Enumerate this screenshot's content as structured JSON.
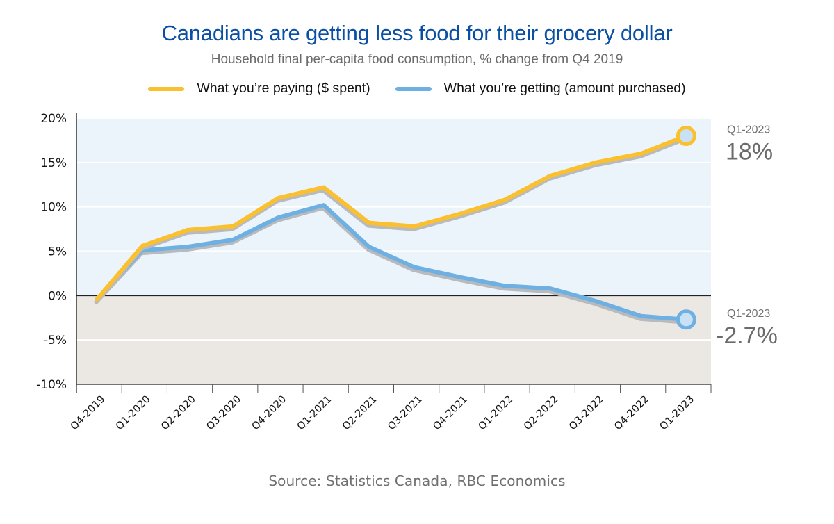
{
  "title": "Canadians are getting less food for their grocery dollar",
  "subtitle": "Household final per-capita food consumption, % change from Q4 2019",
  "source": "Source: Statistics Canada, RBC Economics",
  "colors": {
    "title": "#0a4fa3",
    "paying": "#fbc02d",
    "getting": "#6fb0e3",
    "shadow": "#b9babd",
    "positive_band": "#ecf4fb",
    "negative_band": "#ebe8e4",
    "marker_fill": "#c8e1f5"
  },
  "chart_data": {
    "type": "line",
    "title": "Canadians are getting less food for their grocery dollar",
    "subtitle": "Household final per-capita food consumption, % change from Q4 2019",
    "xlabel": "",
    "ylabel": "",
    "ylim": [
      -10,
      20
    ],
    "yticks": [
      -10,
      -5,
      0,
      5,
      10,
      15,
      20
    ],
    "ytick_labels": [
      "-10%",
      "-5%",
      "0%",
      "5%",
      "10%",
      "15%",
      "20%"
    ],
    "grid": true,
    "legend_position": "top-center",
    "categories": [
      "Q4-2019",
      "Q1-2020",
      "Q2-2020",
      "Q3-2020",
      "Q4-2020",
      "Q1-2021",
      "Q2-2021",
      "Q3-2021",
      "Q4-2021",
      "Q1-2022",
      "Q2-2022",
      "Q3-2022",
      "Q4-2022",
      "Q1-2023"
    ],
    "series": [
      {
        "name": "What you’re paying ($ spent)",
        "key": "paying",
        "values": [
          -0.4,
          5.6,
          7.4,
          7.8,
          11.0,
          12.2,
          8.2,
          7.8,
          9.2,
          10.8,
          13.5,
          15.0,
          16.0,
          18.0
        ]
      },
      {
        "name": "What you’re getting (amount purchased)",
        "key": "getting",
        "values": [
          -0.4,
          5.1,
          5.5,
          6.3,
          8.8,
          10.2,
          5.5,
          3.2,
          2.1,
          1.1,
          0.8,
          -0.6,
          -2.3,
          -2.7
        ]
      }
    ],
    "annotations": [
      {
        "series": "paying",
        "period": "Q1-2023",
        "value_label": "18%"
      },
      {
        "series": "getting",
        "period": "Q1-2023",
        "value_label": "-2.7%"
      }
    ]
  }
}
